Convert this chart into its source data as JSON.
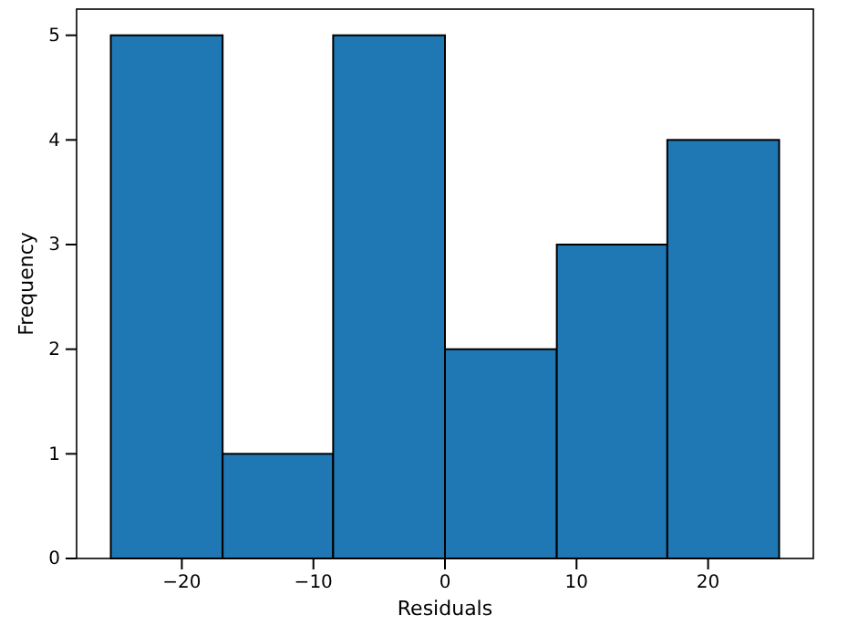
{
  "chart_data": {
    "type": "histogram",
    "xlabel": "Residuals",
    "ylabel": "Frequency",
    "bins": [
      -25.4,
      -16.9,
      -8.5,
      0,
      8.5,
      16.9,
      25.4
    ],
    "values": [
      5,
      1,
      5,
      2,
      3,
      4
    ],
    "color": "#1f77b4",
    "xlim": [
      -28,
      28
    ],
    "xticks": [
      {
        "value": -20,
        "label": "−20"
      },
      {
        "value": -10,
        "label": "−10"
      },
      0,
      10,
      20
    ],
    "ylim": [
      0,
      5.25
    ],
    "yticks": [
      0,
      1,
      2,
      3,
      4,
      5
    ]
  }
}
